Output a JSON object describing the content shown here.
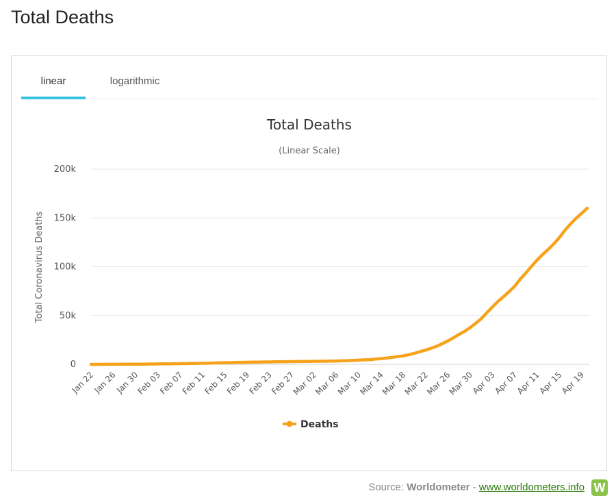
{
  "page": {
    "title": "Total Deaths"
  },
  "tabs": [
    {
      "label": "linear",
      "active": true
    },
    {
      "label": "logarithmic",
      "active": false
    }
  ],
  "source": {
    "prefix": "Source: ",
    "name": "Worldometer",
    "separator": " - ",
    "link": "www.worldometers.info",
    "logo_letter": "W"
  },
  "colors": {
    "series": "#f7a21b",
    "tab_accent": "#36c3e0",
    "grid": "#e6e6e6",
    "logo": "#8bc34a"
  },
  "chart_data": {
    "type": "line",
    "title": "Total Deaths",
    "subtitle": "(Linear Scale)",
    "ylabel": "Total Coronavirus Deaths",
    "xlabel": "",
    "ylim": [
      0,
      200000
    ],
    "yticks": [
      0,
      50000,
      100000,
      150000,
      200000
    ],
    "ytick_labels": [
      "0",
      "50k",
      "100k",
      "150k",
      "200k"
    ],
    "grid": true,
    "legend": "bottom-center",
    "categories": [
      "Jan 22",
      "Jan 23",
      "Jan 24",
      "Jan 25",
      "Jan 26",
      "Jan 27",
      "Jan 28",
      "Jan 29",
      "Jan 30",
      "Jan 31",
      "Feb 01",
      "Feb 02",
      "Feb 03",
      "Feb 04",
      "Feb 05",
      "Feb 06",
      "Feb 07",
      "Feb 08",
      "Feb 09",
      "Feb 10",
      "Feb 11",
      "Feb 12",
      "Feb 13",
      "Feb 14",
      "Feb 15",
      "Feb 16",
      "Feb 17",
      "Feb 18",
      "Feb 19",
      "Feb 20",
      "Feb 21",
      "Feb 22",
      "Feb 23",
      "Feb 24",
      "Feb 25",
      "Feb 26",
      "Feb 27",
      "Feb 28",
      "Feb 29",
      "Mar 01",
      "Mar 02",
      "Mar 03",
      "Mar 04",
      "Mar 05",
      "Mar 06",
      "Mar 07",
      "Mar 08",
      "Mar 09",
      "Mar 10",
      "Mar 11",
      "Mar 12",
      "Mar 13",
      "Mar 14",
      "Mar 15",
      "Mar 16",
      "Mar 17",
      "Mar 18",
      "Mar 19",
      "Mar 20",
      "Mar 21",
      "Mar 22",
      "Mar 23",
      "Mar 24",
      "Mar 25",
      "Mar 26",
      "Mar 27",
      "Mar 28",
      "Mar 29",
      "Mar 30",
      "Mar 31",
      "Apr 01",
      "Apr 02",
      "Apr 03",
      "Apr 04",
      "Apr 05",
      "Apr 06",
      "Apr 07",
      "Apr 08",
      "Apr 09",
      "Apr 10",
      "Apr 11",
      "Apr 12",
      "Apr 13",
      "Apr 14",
      "Apr 15",
      "Apr 16",
      "Apr 17",
      "Apr 18",
      "Apr 19",
      "Apr 20"
    ],
    "tick_labels": [
      "Jan 22",
      "Jan 26",
      "Jan 30",
      "Feb 03",
      "Feb 07",
      "Feb 11",
      "Feb 15",
      "Feb 19",
      "Feb 23",
      "Feb 27",
      "Mar 02",
      "Mar 06",
      "Mar 10",
      "Mar 14",
      "Mar 18",
      "Mar 22",
      "Mar 26",
      "Mar 30",
      "Apr 03",
      "Apr 07",
      "Apr 11",
      "Apr 15",
      "Apr 19"
    ],
    "series": [
      {
        "name": "Deaths",
        "values": [
          17,
          18,
          26,
          42,
          56,
          82,
          131,
          133,
          171,
          213,
          259,
          362,
          426,
          492,
          564,
          634,
          719,
          806,
          906,
          1013,
          1113,
          1118,
          1371,
          1523,
          1666,
          1770,
          1868,
          2007,
          2122,
          2247,
          2251,
          2458,
          2469,
          2629,
          2708,
          2770,
          2814,
          2872,
          2941,
          2996,
          3085,
          3160,
          3254,
          3348,
          3460,
          3558,
          3802,
          3988,
          4262,
          4615,
          4720,
          5404,
          5819,
          6440,
          7126,
          7905,
          8733,
          9867,
          11299,
          13011,
          14612,
          16505,
          18625,
          21181,
          23970,
          27198,
          30652,
          33925,
          37582,
          42107,
          46809,
          52983,
          58787,
          64606,
          69374,
          74565,
          80135,
          87469,
          93762,
          100441,
          106958,
          112569,
          117723,
          123464,
          129919,
          137326,
          143936,
          149681,
          154786,
          160000
        ]
      }
    ]
  }
}
